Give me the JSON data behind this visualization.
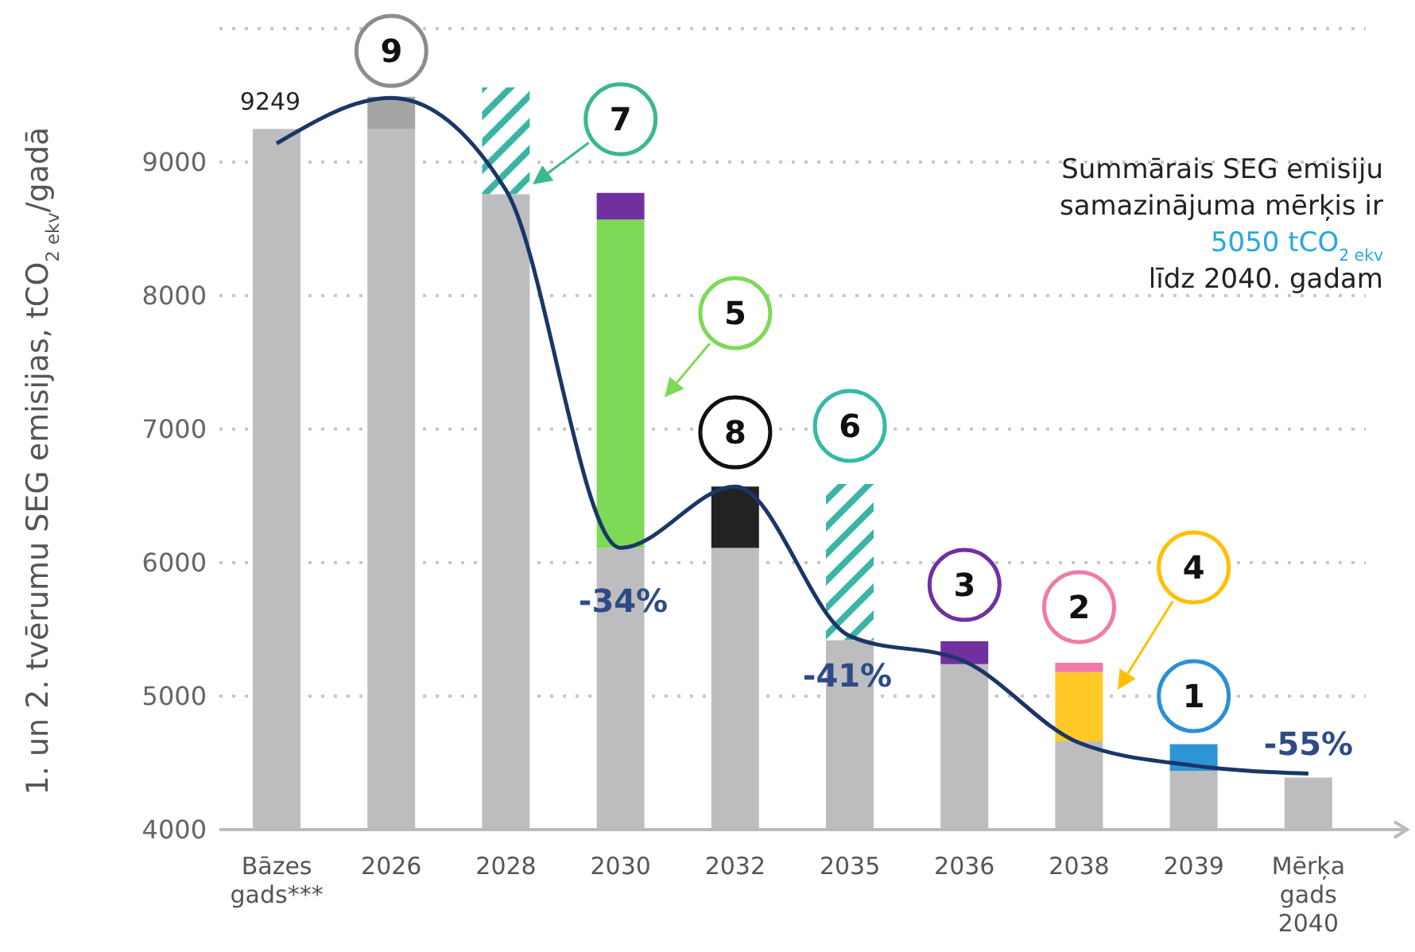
{
  "chart_data": {
    "type": "bar",
    "stacked": true,
    "ylabel": "1. un 2. tvērumu SEG emisijas, tCO$_{2 ekv}$/gadā",
    "categories": [
      "Bāzes gads***",
      "2026",
      "2028",
      "2030",
      "2032",
      "2035",
      "2036",
      "2038",
      "2039",
      "Mērķa gads 2040"
    ],
    "series": [
      {
        "color": "#bdbdbf",
        "values": [
          9249,
          9250,
          8760,
          6110,
          6110,
          5420,
          5240,
          4660,
          4440,
          4390
        ],
        "value_labels": [
          "9249",
          null,
          null,
          null,
          null,
          null,
          null,
          null,
          null,
          null
        ]
      },
      {
        "color": "#a5a5a5",
        "values": [
          null,
          240,
          null,
          null,
          null,
          null,
          null,
          null,
          null,
          null
        ],
        "base": [
          null,
          9250,
          null,
          null,
          null,
          null,
          null,
          null,
          null,
          null
        ]
      },
      {
        "color": "#3ab5a5",
        "values": [
          null,
          null,
          800,
          null,
          null,
          1170,
          null,
          null,
          null,
          null
        ],
        "base": [
          null,
          null,
          8760,
          null,
          null,
          5420,
          null,
          null,
          null,
          null
        ]
      },
      {
        "color": "#7ed957",
        "values": [
          null,
          null,
          null,
          2460,
          null,
          null,
          null,
          null,
          null,
          null
        ],
        "base": [
          null,
          null,
          null,
          6110,
          null,
          null,
          null,
          null,
          null,
          null
        ]
      },
      {
        "color": "#222222",
        "values": [
          null,
          null,
          null,
          null,
          460,
          null,
          null,
          null,
          null,
          null
        ],
        "base": [
          null,
          null,
          null,
          null,
          6110,
          null,
          null,
          null,
          null,
          null
        ]
      },
      {
        "color": "#ffca28",
        "values": [
          null,
          null,
          null,
          null,
          null,
          null,
          null,
          520,
          null,
          null
        ],
        "base": [
          null,
          null,
          null,
          null,
          null,
          null,
          null,
          4660,
          null,
          null
        ]
      },
      {
        "color": "#7030a0",
        "values": [
          null,
          null,
          null,
          200,
          null,
          null,
          170,
          null,
          null,
          null
        ],
        "base": [
          null,
          null,
          null,
          8570,
          null,
          null,
          5240,
          null,
          null,
          null
        ]
      },
      {
        "color": "#f07aa8",
        "values": [
          null,
          null,
          null,
          null,
          null,
          null,
          null,
          70,
          null,
          null
        ],
        "base": [
          null,
          null,
          null,
          null,
          null,
          null,
          null,
          5180,
          null,
          null
        ]
      },
      {
        "color": "#2d95d5",
        "values": [
          null,
          null,
          null,
          null,
          null,
          null,
          null,
          null,
          200,
          null
        ],
        "base": [
          null,
          null,
          null,
          null,
          null,
          null,
          null,
          null,
          4440,
          null
        ]
      },
      {
        "type": "line",
        "color": "#1b3668",
        "values": [
          9140,
          9480,
          8790,
          6110,
          6570,
          5450,
          5260,
          4650,
          4480,
          4420
        ]
      }
    ],
    "ylim": [
      4000,
      10000
    ],
    "yticks": [
      4000,
      5000,
      6000,
      7000,
      8000,
      9000
    ],
    "grid": "y",
    "marker": "none",
    "line_style": "solid",
    "annotations": [
      {
        "text": "9",
        "x": "2026",
        "y": 9833
      },
      {
        "text": "7",
        "x": "2030",
        "y": 9321
      },
      {
        "text": "5",
        "x": "2032",
        "y": 7869
      },
      {
        "text": "8",
        "x": "2032",
        "y": 6976
      },
      {
        "text": "6",
        "x": "2035",
        "y": 7024
      },
      {
        "text": "3",
        "x": "2036",
        "y": 5833
      },
      {
        "text": "2",
        "x": "2038",
        "y": 5667
      },
      {
        "text": "4",
        "x": "2039",
        "y": 5964
      },
      {
        "text": "1",
        "x": "2039",
        "y": 5000
      },
      "-34%",
      "-41%",
      "-55%",
      "Summārais SEG emisiju",
      "samazinājuma mērķis ir",
      "5050 tCO$_{2 ekv}$",
      "līdz 2040. gadam"
    ]
  }
}
